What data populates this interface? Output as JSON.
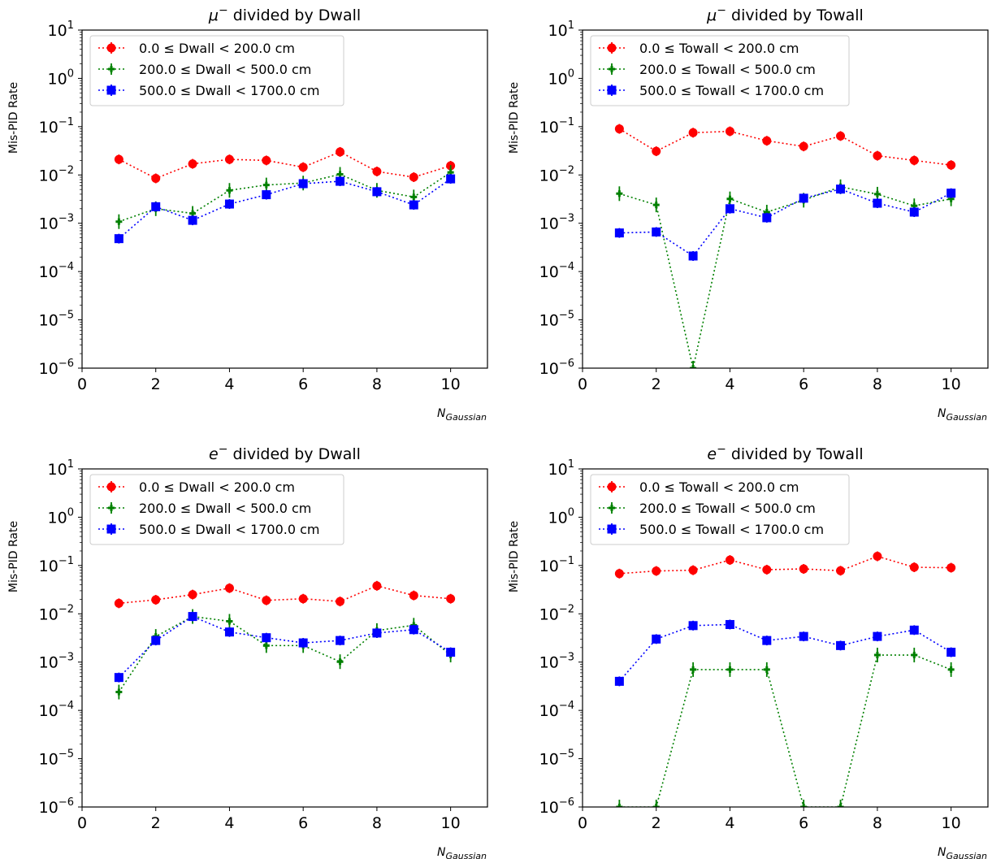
{
  "chart_data": [
    {
      "type": "line",
      "title": "μ⁻ divided by Dwall",
      "ylabel": "Mis-PID Rate",
      "xlabel": "N_Gaussian",
      "xlim": [
        0,
        11
      ],
      "ylim": [
        1e-06,
        10
      ],
      "yscale": "log",
      "x": [
        1,
        2,
        3,
        4,
        5,
        6,
        7,
        8,
        9,
        10
      ],
      "legend_position": "upper-left",
      "series": [
        {
          "name": "0.0 ≤ Dwall < 200.0 cm",
          "color": "#ff0000",
          "marker": "circle",
          "values": [
            0.021,
            0.0085,
            0.017,
            0.021,
            0.02,
            0.0145,
            0.03,
            0.0118,
            0.009,
            0.0155
          ]
        },
        {
          "name": "200.0 ≤ Dwall < 500.0 cm",
          "color": "#008000",
          "marker": "plus",
          "values": [
            0.00108,
            0.002,
            0.0016,
            0.0048,
            0.0062,
            0.0068,
            0.0103,
            0.0048,
            0.0035,
            0.0113
          ]
        },
        {
          "name": "500.0 ≤ Dwall < 1700.0 cm",
          "color": "#0000ff",
          "marker": "square",
          "values": [
            0.00048,
            0.0022,
            0.00115,
            0.0025,
            0.0039,
            0.0066,
            0.0074,
            0.0045,
            0.0024,
            0.0083
          ]
        }
      ]
    },
    {
      "type": "line",
      "title": "μ⁻ divided by Towall",
      "ylabel": "Mis-PID Rate",
      "xlabel": "N_Gaussian",
      "xlim": [
        0,
        11
      ],
      "ylim": [
        1e-06,
        10
      ],
      "yscale": "log",
      "x": [
        1,
        2,
        3,
        4,
        5,
        6,
        7,
        8,
        9,
        10
      ],
      "legend_position": "upper-left",
      "series": [
        {
          "name": "0.0 ≤ Towall < 200.0 cm",
          "color": "#ff0000",
          "marker": "circle",
          "values": [
            0.09,
            0.031,
            0.075,
            0.08,
            0.051,
            0.039,
            0.064,
            0.025,
            0.02,
            0.016
          ]
        },
        {
          "name": "200.0 ≤ Towall < 500.0 cm",
          "color": "#008000",
          "marker": "plus",
          "values": [
            0.0041,
            0.0024,
            1e-06,
            0.0032,
            0.0017,
            0.003,
            0.0057,
            0.004,
            0.0023,
            0.0032
          ]
        },
        {
          "name": "500.0 ≤ Towall < 1700.0 cm",
          "color": "#0000ff",
          "marker": "square",
          "values": [
            0.00063,
            0.00066,
            0.00021,
            0.002,
            0.0013,
            0.0033,
            0.0051,
            0.0026,
            0.0017,
            0.0042
          ]
        }
      ]
    },
    {
      "type": "line",
      "title": "e⁻ divided by Dwall",
      "ylabel": "Mis-PID Rate",
      "xlabel": "N_Gaussian",
      "xlim": [
        0,
        11
      ],
      "ylim": [
        1e-06,
        10
      ],
      "yscale": "log",
      "x": [
        1,
        2,
        3,
        4,
        5,
        6,
        7,
        8,
        9,
        10
      ],
      "legend_position": "upper-left",
      "series": [
        {
          "name": "0.0 ≤ Dwall < 200.0 cm",
          "color": "#ff0000",
          "marker": "circle",
          "values": [
            0.0165,
            0.0195,
            0.025,
            0.034,
            0.019,
            0.0205,
            0.018,
            0.038,
            0.024,
            0.0205
          ]
        },
        {
          "name": "200.0 ≤ Dwall < 500.0 cm",
          "color": "#008000",
          "marker": "plus",
          "values": [
            0.00024,
            0.0034,
            0.0088,
            0.007,
            0.0022,
            0.0022,
            0.00102,
            0.0045,
            0.0058,
            0.0014
          ]
        },
        {
          "name": "500.0 ≤ Dwall < 1700.0 cm",
          "color": "#0000ff",
          "marker": "square",
          "values": [
            0.00048,
            0.0028,
            0.0088,
            0.0042,
            0.0032,
            0.0025,
            0.0028,
            0.004,
            0.0047,
            0.0016
          ]
        }
      ]
    },
    {
      "type": "line",
      "title": "e⁻ divided by Towall",
      "ylabel": "Mis-PID Rate",
      "xlabel": "N_Gaussian",
      "xlim": [
        0,
        11
      ],
      "ylim": [
        1e-06,
        10
      ],
      "yscale": "log",
      "x": [
        1,
        2,
        3,
        4,
        5,
        6,
        7,
        8,
        9,
        10
      ],
      "legend_position": "upper-left",
      "series": [
        {
          "name": "0.0 ≤ Towall < 200.0 cm",
          "color": "#ff0000",
          "marker": "circle",
          "values": [
            0.068,
            0.077,
            0.08,
            0.13,
            0.082,
            0.085,
            0.078,
            0.155,
            0.092,
            0.09
          ]
        },
        {
          "name": "200.0 ≤ Towall < 500.0 cm",
          "color": "#008000",
          "marker": "plus",
          "values": [
            1e-06,
            1e-06,
            0.0007,
            0.0007,
            0.0007,
            1e-06,
            1e-06,
            0.0014,
            0.0014,
            0.0007
          ]
        },
        {
          "name": "500.0 ≤ Towall < 1700.0 cm",
          "color": "#0000ff",
          "marker": "square",
          "values": [
            0.0004,
            0.003,
            0.0057,
            0.006,
            0.0028,
            0.0034,
            0.0022,
            0.0034,
            0.0046,
            0.0016
          ]
        }
      ]
    }
  ]
}
